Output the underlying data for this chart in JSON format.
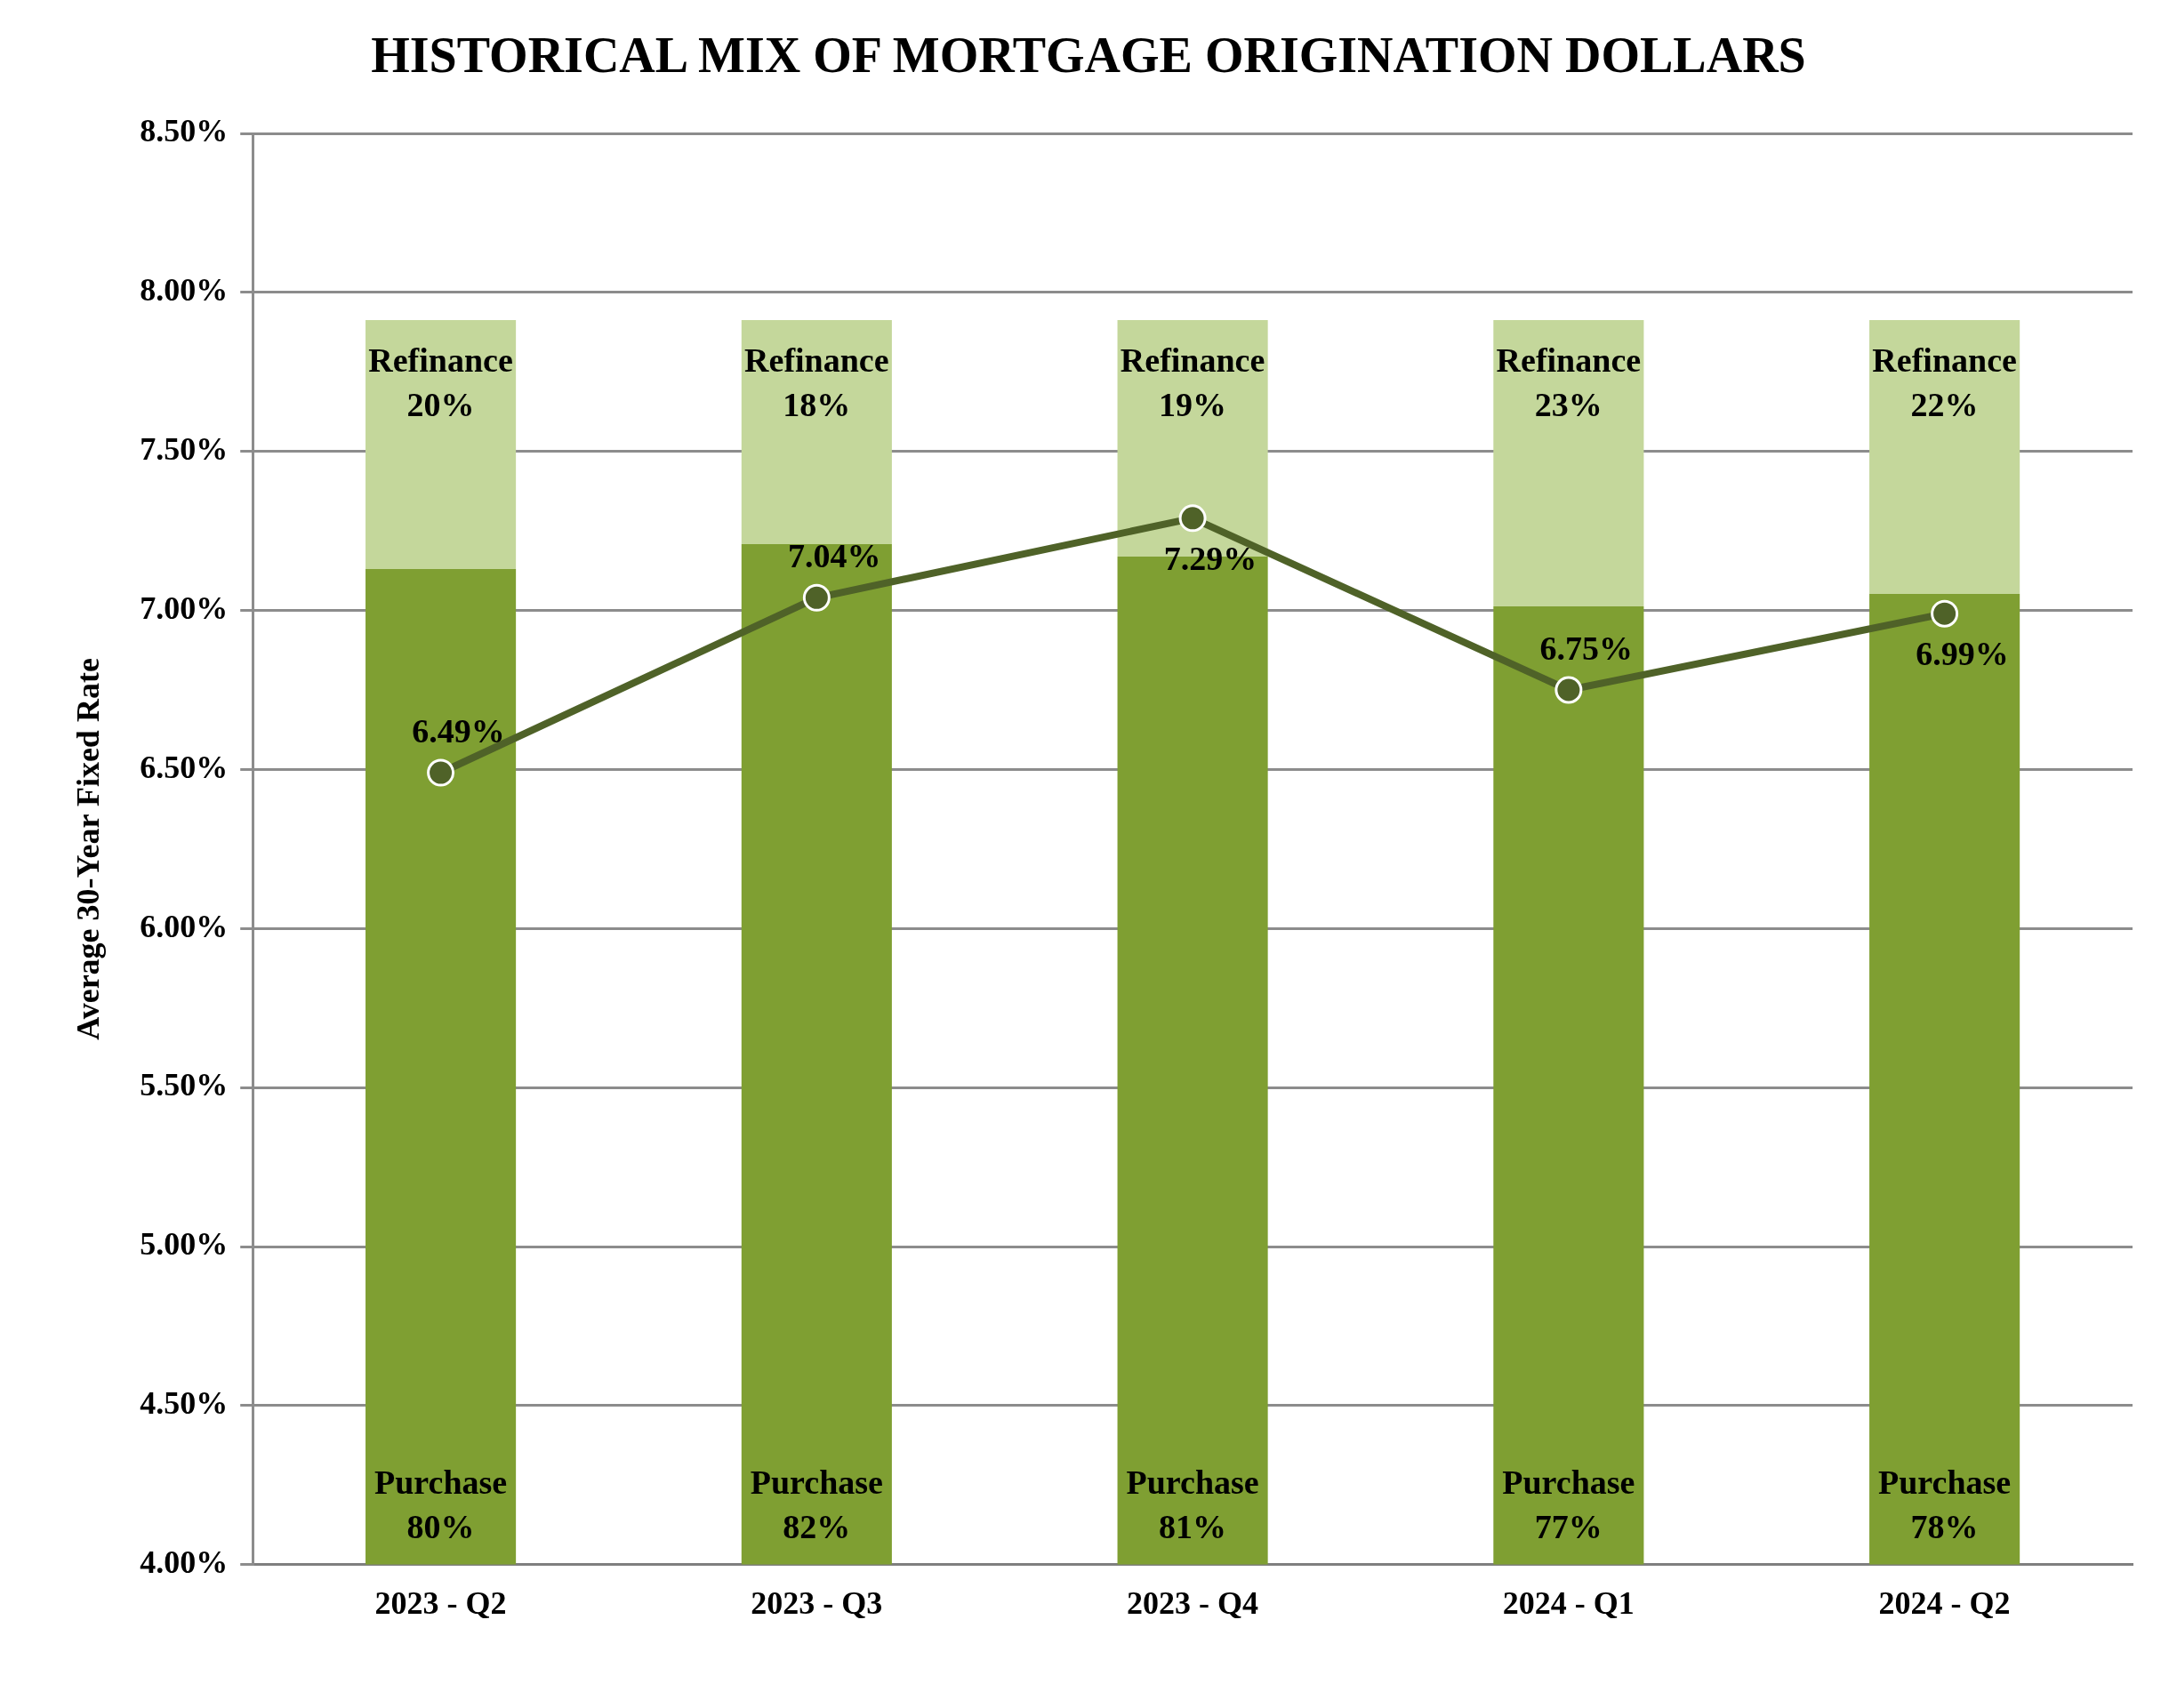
{
  "chart_data": {
    "type": "bar",
    "title": "HISTORICAL MIX OF MORTGAGE ORIGINATION DOLLARS",
    "ylabel": "Average 30-Year Fixed Rate",
    "categories": [
      "2023 - Q2",
      "2023 - Q3",
      "2023 - Q4",
      "2024 - Q1",
      "2024 - Q2"
    ],
    "stacked": true,
    "series": [
      {
        "name": "Purchase",
        "color": "#7f9f32",
        "axis": "y2",
        "values": [
          80,
          82,
          81,
          77,
          78
        ],
        "value_labels": [
          "80%",
          "82%",
          "81%",
          "77%",
          "78%"
        ]
      },
      {
        "name": "Refinance",
        "color": "#c4d79b",
        "axis": "y2",
        "values": [
          20,
          18,
          19,
          23,
          22
        ],
        "value_labels": [
          "20%",
          "18%",
          "19%",
          "23%",
          "22%"
        ]
      },
      {
        "type": "line",
        "color": "#4f6228",
        "marker": "circle",
        "values": [
          6.49,
          7.04,
          7.29,
          6.75,
          6.99
        ],
        "value_labels": [
          "6.49%",
          "7.04%",
          "7.29%",
          "6.75%",
          "6.99%"
        ]
      }
    ],
    "ylim": [
      4,
      8.5
    ],
    "yticks": [
      {
        "value": 4,
        "label": "4.00%"
      },
      {
        "value": 4.5,
        "label": "4.50%"
      },
      {
        "value": 5,
        "label": "5.00%"
      },
      {
        "value": 5.5,
        "label": "5.50%"
      },
      {
        "value": 6,
        "label": "6.00%"
      },
      {
        "value": 6.5,
        "label": "6.50%"
      },
      {
        "value": 7,
        "label": "7.00%"
      },
      {
        "value": 7.5,
        "label": "7.50%"
      },
      {
        "value": 8,
        "label": "8.00%"
      },
      {
        "value": 8.5,
        "label": "8.50%"
      }
    ],
    "y2lim": [
      0,
      115
    ],
    "grid": "y"
  }
}
